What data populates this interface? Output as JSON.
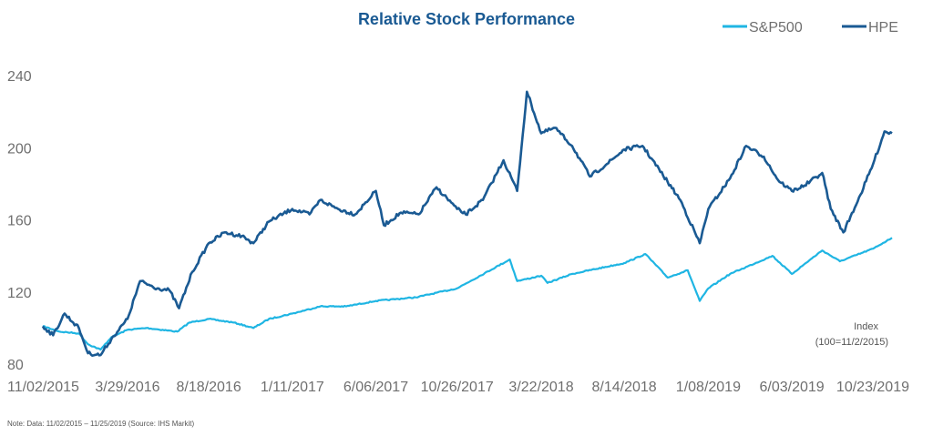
{
  "colors": {
    "hpe": "#1a5a93",
    "sp500": "#1fb5e3",
    "title": "#1a5a93",
    "axis_text": "#6f6f6f",
    "note_text": "#555555"
  },
  "chart_data": {
    "type": "line",
    "title": "Relative Stock Performance",
    "xlabel": "",
    "ylabel": "",
    "ylim": [
      80,
      240
    ],
    "yticks": [
      "80",
      "120",
      "160",
      "200",
      "240"
    ],
    "xticks": [
      "11/02/2015",
      "3/29/2016",
      "8/18/2016",
      "1/11/2017",
      "6/06/2017",
      "10/26/2017",
      "3/22/2018",
      "8/14/2018",
      "1/08/2019",
      "6/03/2019",
      "10/23/2019"
    ],
    "x_range": [
      "11/02/2015",
      "11/25/2019"
    ],
    "annotation": [
      "Index",
      "(100=11/2/2015)"
    ],
    "grid": false,
    "legend_position": "top-right",
    "series": [
      {
        "name": "S&P500",
        "color": "#1fb5e3",
        "points": [
          [
            "11/02/2015",
            100
          ],
          [
            "12/01/2015",
            97
          ],
          [
            "1/04/2016",
            96
          ],
          [
            "1/20/2016",
            90
          ],
          [
            "2/11/2016",
            87
          ],
          [
            "3/01/2016",
            94
          ],
          [
            "3/29/2016",
            98
          ],
          [
            "5/01/2016",
            99
          ],
          [
            "6/24/2016",
            97
          ],
          [
            "7/15/2016",
            102
          ],
          [
            "8/18/2016",
            104
          ],
          [
            "10/01/2016",
            102
          ],
          [
            "11/04/2016",
            99
          ],
          [
            "12/01/2016",
            104
          ],
          [
            "1/11/2017",
            107
          ],
          [
            "3/01/2017",
            111
          ],
          [
            "4/15/2017",
            111
          ],
          [
            "6/06/2017",
            114
          ],
          [
            "8/15/2017",
            116
          ],
          [
            "10/26/2017",
            121
          ],
          [
            "1/26/2018",
            137
          ],
          [
            "2/08/2018",
            125
          ],
          [
            "3/22/2018",
            128
          ],
          [
            "4/02/2018",
            124
          ],
          [
            "5/15/2018",
            129
          ],
          [
            "8/14/2018",
            135
          ],
          [
            "9/20/2018",
            140
          ],
          [
            "10/29/2018",
            127
          ],
          [
            "12/03/2018",
            131
          ],
          [
            "12/24/2018",
            114
          ],
          [
            "1/08/2019",
            121
          ],
          [
            "2/15/2019",
            129
          ],
          [
            "4/30/2019",
            139
          ],
          [
            "6/03/2019",
            129
          ],
          [
            "7/26/2019",
            142
          ],
          [
            "8/26/2019",
            136
          ],
          [
            "10/23/2019",
            143
          ],
          [
            "11/25/2019",
            149
          ]
        ]
      },
      {
        "name": "HPE",
        "color": "#1a5a93",
        "points": [
          [
            "11/02/2015",
            100
          ],
          [
            "11/20/2015",
            95
          ],
          [
            "12/10/2015",
            107
          ],
          [
            "1/04/2016",
            99
          ],
          [
            "1/20/2016",
            85
          ],
          [
            "2/11/2016",
            84
          ],
          [
            "3/01/2016",
            93
          ],
          [
            "3/29/2016",
            104
          ],
          [
            "4/20/2016",
            125
          ],
          [
            "5/20/2016",
            121
          ],
          [
            "6/10/2016",
            120
          ],
          [
            "6/27/2016",
            110
          ],
          [
            "7/20/2016",
            130
          ],
          [
            "8/18/2016",
            146
          ],
          [
            "9/15/2016",
            152
          ],
          [
            "10/15/2016",
            150
          ],
          [
            "11/04/2016",
            146
          ],
          [
            "12/01/2016",
            158
          ],
          [
            "1/11/2017",
            165
          ],
          [
            "2/10/2017",
            162
          ],
          [
            "3/01/2017",
            170
          ],
          [
            "4/01/2017",
            165
          ],
          [
            "5/01/2017",
            162
          ],
          [
            "6/06/2017",
            175
          ],
          [
            "6/20/2017",
            156
          ],
          [
            "7/20/2017",
            163
          ],
          [
            "8/20/2017",
            162
          ],
          [
            "9/20/2017",
            177
          ],
          [
            "10/26/2017",
            165
          ],
          [
            "11/10/2017",
            162
          ],
          [
            "12/10/2017",
            170
          ],
          [
            "1/15/2018",
            192
          ],
          [
            "2/08/2018",
            175
          ],
          [
            "2/25/2018",
            230
          ],
          [
            "3/22/2018",
            207
          ],
          [
            "4/15/2018",
            210
          ],
          [
            "5/15/2018",
            200
          ],
          [
            "6/15/2018",
            183
          ],
          [
            "7/15/2018",
            190
          ],
          [
            "8/14/2018",
            198
          ],
          [
            "9/15/2018",
            200
          ],
          [
            "10/29/2018",
            180
          ],
          [
            "11/20/2018",
            170
          ],
          [
            "12/24/2018",
            146
          ],
          [
            "1/08/2019",
            165
          ],
          [
            "2/15/2019",
            182
          ],
          [
            "3/15/2019",
            200
          ],
          [
            "4/15/2019",
            194
          ],
          [
            "5/10/2019",
            181
          ],
          [
            "6/03/2019",
            175
          ],
          [
            "6/25/2019",
            178
          ],
          [
            "7/26/2019",
            185
          ],
          [
            "8/10/2019",
            165
          ],
          [
            "9/01/2019",
            152
          ],
          [
            "10/01/2019",
            173
          ],
          [
            "10/23/2019",
            190
          ],
          [
            "11/12/2019",
            208
          ],
          [
            "11/25/2019",
            207
          ]
        ]
      }
    ]
  },
  "footer": {
    "note": "Note: Data: 11/02/2015 – 11/25/2019 (Source: IHS Markit)"
  }
}
